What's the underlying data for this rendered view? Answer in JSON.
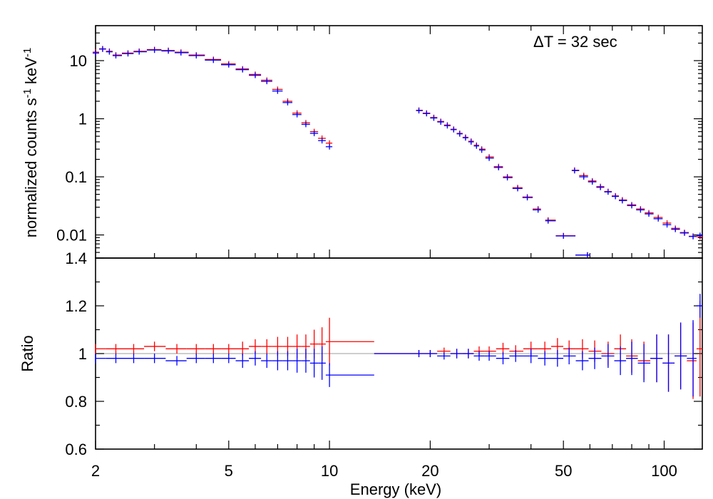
{
  "chart_data": [
    {
      "panel": "spectrum",
      "type": "scatter",
      "ylabel": "normalized counts s-1 keV-1",
      "xscale": "log",
      "yscale": "log",
      "xlim": [
        2,
        130
      ],
      "ylim": [
        0.004,
        40
      ],
      "annotation": "ΔT = 32 sec",
      "y_tick_labels": [
        "10",
        "1",
        "0.1",
        "0.01"
      ],
      "y_tick_values": [
        10,
        1,
        0.1,
        0.01
      ],
      "colors": {
        "series_1": "#ff0000",
        "series_2": "#0000ff"
      },
      "series": [
        {
          "color": "#ff0000",
          "segments": [
            {
              "energy_range_keV": [
                2,
                10
              ],
              "x": [
                2.0,
                2.1,
                2.2,
                2.3,
                2.5,
                2.7,
                3.0,
                3.3,
                3.6,
                4.0,
                4.5,
                5.0,
                5.5,
                6.0,
                6.5,
                7.0,
                7.5,
                8.0,
                8.5,
                9.0,
                9.5,
                10.0
              ],
              "y": [
                14.0,
                16.0,
                14.5,
                12.5,
                13.5,
                14.5,
                15.5,
                15.0,
                14.0,
                12.5,
                10.5,
                8.8,
                7.2,
                5.8,
                4.6,
                3.2,
                2.0,
                1.25,
                0.85,
                0.6,
                0.46,
                0.38
              ]
            },
            {
              "energy_range_keV": [
                18,
                44
              ],
              "x": [
                18.5,
                19.5,
                20.5,
                21.5,
                22.5,
                23.5,
                24.5,
                25.5,
                26.5,
                27.5,
                28.5,
                30.0,
                32.0,
                34.0,
                36.5,
                39.0,
                42.0
              ],
              "y": [
                1.4,
                1.25,
                1.05,
                0.9,
                0.78,
                0.66,
                0.56,
                0.48,
                0.41,
                0.35,
                0.3,
                0.22,
                0.15,
                0.1,
                0.065,
                0.045,
                0.028
              ]
            },
            {
              "energy_range_keV": [
                44,
                67
              ],
              "x": [
                45.0,
                50.0,
                59.0
              ],
              "y": [
                0.018,
                0.0097,
                0.0045
              ]
            },
            {
              "energy_range_keV": [
                52,
                130
              ],
              "x": [
                54.0,
                57.5,
                61.0,
                64.5,
                68.0,
                71.5,
                75.0,
                80.0,
                85.0,
                90.0,
                96.0,
                102.0,
                108.0,
                115.0,
                122.0,
                128.0
              ],
              "y": [
                0.13,
                0.105,
                0.085,
                0.068,
                0.056,
                0.047,
                0.04,
                0.033,
                0.028,
                0.024,
                0.02,
                0.016,
                0.013,
                0.011,
                0.0095,
                0.0093
              ]
            }
          ]
        },
        {
          "color": "#0000ff",
          "segments": [
            {
              "energy_range_keV": [
                2,
                10
              ],
              "x": [
                2.0,
                2.1,
                2.2,
                2.3,
                2.5,
                2.7,
                3.0,
                3.3,
                3.6,
                4.0,
                4.5,
                5.0,
                5.5,
                6.0,
                6.5,
                7.0,
                7.5,
                8.0,
                8.5,
                9.0,
                9.5,
                10.0
              ],
              "y": [
                13.5,
                15.8,
                14.2,
                12.2,
                13.2,
                14.2,
                15.2,
                14.7,
                13.7,
                12.2,
                10.2,
                8.5,
                7.0,
                5.6,
                4.4,
                3.0,
                1.9,
                1.18,
                0.8,
                0.56,
                0.42,
                0.33
              ]
            },
            {
              "energy_range_keV": [
                18,
                44
              ],
              "x": [
                18.5,
                19.5,
                20.5,
                21.5,
                22.5,
                23.5,
                24.5,
                25.5,
                26.5,
                27.5,
                28.5,
                30.0,
                32.0,
                34.0,
                36.5,
                39.0,
                42.0
              ],
              "y": [
                1.38,
                1.23,
                1.03,
                0.88,
                0.76,
                0.65,
                0.55,
                0.47,
                0.4,
                0.34,
                0.29,
                0.21,
                0.145,
                0.097,
                0.063,
                0.044,
                0.027
              ]
            },
            {
              "energy_range_keV": [
                44,
                67
              ],
              "x": [
                45.0,
                50.0,
                59.0
              ],
              "y": [
                0.0175,
                0.0096,
                0.0045
              ]
            },
            {
              "energy_range_keV": [
                52,
                130
              ],
              "x": [
                54.0,
                57.5,
                61.0,
                64.5,
                68.0,
                71.5,
                75.0,
                80.0,
                85.0,
                90.0,
                96.0,
                102.0,
                108.0,
                115.0,
                122.0,
                128.0
              ],
              "y": [
                0.128,
                0.1,
                0.082,
                0.066,
                0.055,
                0.046,
                0.039,
                0.032,
                0.027,
                0.023,
                0.019,
                0.015,
                0.0125,
                0.0108,
                0.0094,
                0.0098
              ]
            }
          ]
        }
      ]
    },
    {
      "panel": "ratio",
      "type": "scatter",
      "xlabel": "Energy (keV)",
      "ylabel": "Ratio",
      "xscale": "log",
      "yscale": "linear",
      "xlim": [
        2,
        130
      ],
      "ylim": [
        0.6,
        1.4
      ],
      "reference_line": 1.0,
      "x_tick_labels": [
        "2",
        "5",
        "10",
        "20",
        "50",
        "100"
      ],
      "x_tick_values": [
        2,
        5,
        10,
        20,
        50,
        100
      ],
      "y_tick_labels": [
        "0.6",
        "0.8",
        "1",
        "1.2",
        "1.4"
      ],
      "y_tick_values": [
        0.6,
        0.8,
        1.0,
        1.2,
        1.4
      ],
      "series": [
        {
          "color": "#ff0000",
          "points": [
            [
              2.0,
              1.02
            ],
            [
              2.3,
              1.02
            ],
            [
              2.6,
              1.02
            ],
            [
              3.0,
              1.03
            ],
            [
              3.5,
              1.02
            ],
            [
              4.0,
              1.02
            ],
            [
              4.5,
              1.02
            ],
            [
              5.0,
              1.02
            ],
            [
              5.5,
              1.02
            ],
            [
              6.0,
              1.03
            ],
            [
              6.5,
              1.03
            ],
            [
              7.0,
              1.03
            ],
            [
              7.5,
              1.03
            ],
            [
              8.0,
              1.03
            ],
            [
              8.5,
              1.03
            ],
            [
              9.0,
              1.04
            ],
            [
              9.5,
              1.04
            ],
            [
              10.0,
              1.05
            ],
            [
              18.5,
              1.0
            ],
            [
              20,
              1.0
            ],
            [
              22,
              1.01
            ],
            [
              24,
              1.0
            ],
            [
              26,
              1.0
            ],
            [
              28,
              1.01
            ],
            [
              30,
              1.01
            ],
            [
              33,
              1.02
            ],
            [
              36,
              1.01
            ],
            [
              40,
              1.02
            ],
            [
              44,
              1.02
            ],
            [
              48,
              1.03
            ],
            [
              52,
              1.02
            ],
            [
              57,
              1.02
            ],
            [
              62,
              1.01
            ],
            [
              68,
              1.0
            ],
            [
              74,
              1.02
            ],
            [
              80,
              0.99
            ],
            [
              87,
              0.97
            ],
            [
              95,
              0.98
            ],
            [
              103,
              0.96
            ],
            [
              112,
              0.99
            ],
            [
              122,
              0.97
            ],
            [
              128,
              1.02
            ]
          ],
          "errors": [
            0.02,
            0.02,
            0.02,
            0.02,
            0.02,
            0.02,
            0.02,
            0.02,
            0.03,
            0.03,
            0.03,
            0.04,
            0.04,
            0.05,
            0.05,
            0.06,
            0.07,
            0.1,
            0.015,
            0.015,
            0.015,
            0.02,
            0.02,
            0.02,
            0.02,
            0.025,
            0.025,
            0.03,
            0.03,
            0.035,
            0.035,
            0.04,
            0.045,
            0.05,
            0.06,
            0.07,
            0.08,
            0.1,
            0.12,
            0.14,
            0.16,
            0.2
          ]
        },
        {
          "color": "#0000ff",
          "points": [
            [
              2.0,
              0.98
            ],
            [
              2.3,
              0.98
            ],
            [
              2.6,
              0.98
            ],
            [
              3.0,
              0.98
            ],
            [
              3.5,
              0.97
            ],
            [
              4.0,
              0.98
            ],
            [
              4.5,
              0.98
            ],
            [
              5.0,
              0.98
            ],
            [
              5.5,
              0.97
            ],
            [
              6.0,
              0.98
            ],
            [
              6.5,
              0.97
            ],
            [
              7.0,
              0.97
            ],
            [
              7.5,
              0.97
            ],
            [
              8.0,
              0.97
            ],
            [
              8.5,
              0.97
            ],
            [
              9.0,
              0.96
            ],
            [
              9.5,
              0.96
            ],
            [
              10.0,
              0.91
            ],
            [
              18.5,
              1.0
            ],
            [
              20,
              1.0
            ],
            [
              22,
              0.99
            ],
            [
              24,
              1.0
            ],
            [
              26,
              1.0
            ],
            [
              28,
              0.99
            ],
            [
              30,
              0.99
            ],
            [
              33,
              0.98
            ],
            [
              36,
              0.99
            ],
            [
              40,
              0.99
            ],
            [
              44,
              0.98
            ],
            [
              48,
              0.98
            ],
            [
              52,
              0.99
            ],
            [
              57,
              0.97
            ],
            [
              62,
              0.98
            ],
            [
              68,
              0.99
            ],
            [
              74,
              0.97
            ],
            [
              80,
              0.98
            ],
            [
              87,
              0.96
            ],
            [
              95,
              0.98
            ],
            [
              103,
              0.96
            ],
            [
              112,
              0.99
            ],
            [
              122,
              0.98
            ],
            [
              128,
              1.2
            ]
          ],
          "errors": [
            0.02,
            0.02,
            0.02,
            0.02,
            0.02,
            0.02,
            0.02,
            0.02,
            0.03,
            0.03,
            0.03,
            0.04,
            0.04,
            0.05,
            0.05,
            0.06,
            0.07,
            0.05,
            0.015,
            0.015,
            0.015,
            0.02,
            0.02,
            0.02,
            0.02,
            0.025,
            0.025,
            0.03,
            0.03,
            0.035,
            0.035,
            0.04,
            0.045,
            0.05,
            0.06,
            0.07,
            0.08,
            0.1,
            0.12,
            0.14,
            0.16,
            0.05
          ]
        }
      ]
    }
  ]
}
